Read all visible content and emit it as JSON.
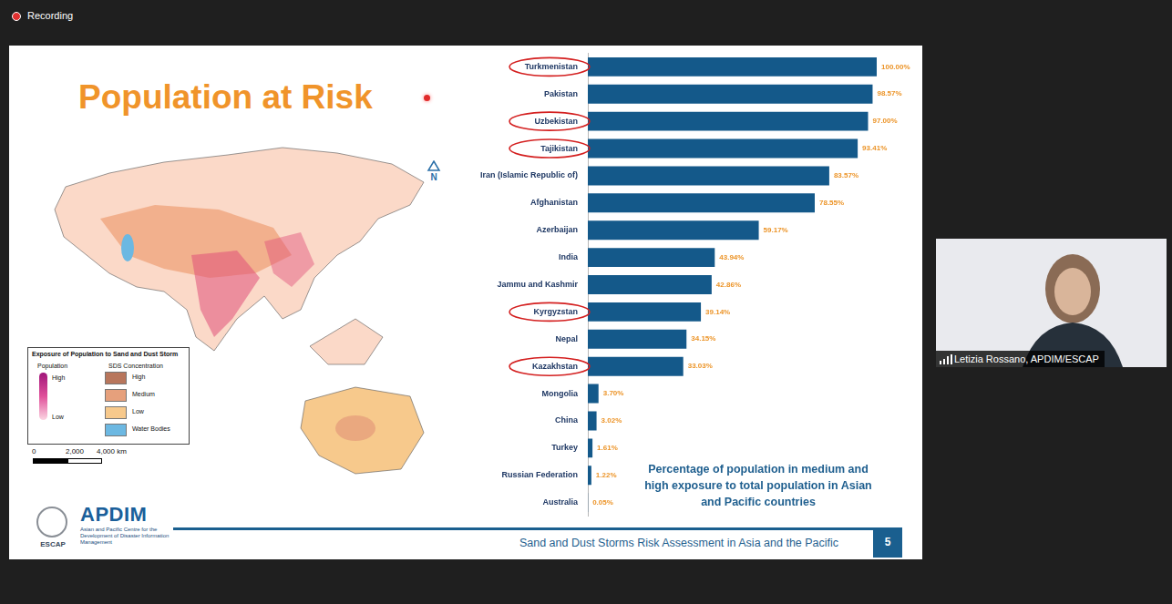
{
  "window": {
    "recording": "Recording",
    "presenter": "Letizia Rossano, APDIM/ESCAP"
  },
  "slide": {
    "title": "Population at Risk",
    "north": "N",
    "map_legend": {
      "title": "Exposure of Population to Sand and Dust Storm",
      "population": "Population",
      "population_high": "High",
      "population_low": "Low",
      "sds": "SDS Concentration",
      "sds_classes": [
        {
          "label": "High",
          "color": "#b8765c"
        },
        {
          "label": "Medium",
          "color": "#e6a07c"
        },
        {
          "label": "Low",
          "color": "#f7c98c"
        },
        {
          "label": "Water Bodies",
          "color": "#6cb8e2"
        }
      ]
    },
    "scale_bar": [
      "0",
      "2,000",
      "4,000 km"
    ],
    "logo": {
      "name": "APDIM",
      "subtitle": "Asian and Pacific Centre for the Development of Disaster Information Management",
      "org": "ESCAP"
    },
    "footer": "Sand and Dust Storms Risk Assessment in Asia and the Pacific",
    "page": 5,
    "circled": [
      "Turkmenistan",
      "Uzbekistan",
      "Tajikistan",
      "Kyrgyzstan",
      "Kazakhstan"
    ]
  },
  "chart_data": {
    "type": "bar",
    "orientation": "horizontal",
    "title": "Percentage of population in medium and high exposure to total population in Asian and Pacific countries",
    "categories": [
      "Turkmenistan",
      "Pakistan",
      "Uzbekistan",
      "Tajikistan",
      "Iran (Islamic Republic of)",
      "Afghanistan",
      "Azerbaijan",
      "India",
      "Jammu and Kashmir",
      "Kyrgyzstan",
      "Nepal",
      "Kazakhstan",
      "Mongolia",
      "China",
      "Turkey",
      "Russian Federation",
      "Australia"
    ],
    "values": [
      100.0,
      98.57,
      97.0,
      93.41,
      83.57,
      78.55,
      59.17,
      43.94,
      42.86,
      39.14,
      34.15,
      33.03,
      3.7,
      3.02,
      1.61,
      1.22,
      0.05
    ],
    "value_labels": [
      "100.00%",
      "98.57%",
      "97.00%",
      "93.41%",
      "83.57%",
      "78.55%",
      "59.17%",
      "43.94%",
      "42.86%",
      "39.14%",
      "34.15%",
      "33.03%",
      "3.70%",
      "3.02%",
      "1.61%",
      "1.22%",
      "0.05%"
    ],
    "color": "#14598a",
    "xlim": [
      0,
      100
    ],
    "grid": false,
    "data_labels": true,
    "tick_labels": "y"
  }
}
